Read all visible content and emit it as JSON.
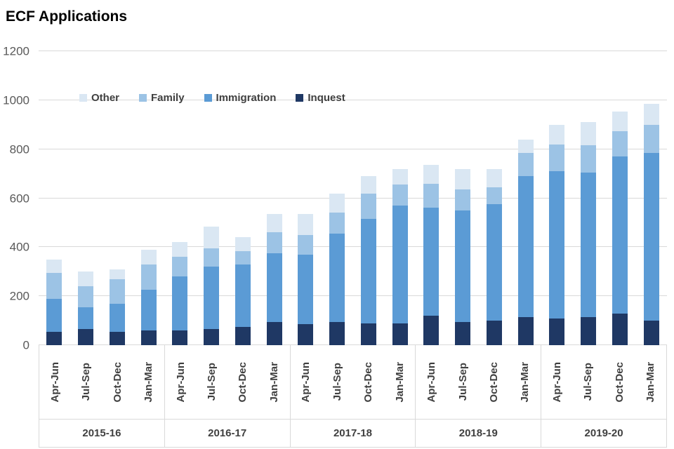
{
  "title": "ECF Applications",
  "chart_data": {
    "type": "bar",
    "variant": "stacked-column",
    "title": "ECF Applications",
    "ylim": [
      0,
      1200
    ],
    "yticks": [
      0,
      200,
      400,
      600,
      800,
      1000,
      1200
    ],
    "grid": "horizontal",
    "legend_position": "inside-top-left",
    "groups": [
      "2015-16",
      "2016-17",
      "2017-18",
      "2018-19",
      "2019-20"
    ],
    "quarters": [
      "Apr-Jun",
      "Jul-Sep",
      "Oct-Dec",
      "Jan-Mar"
    ],
    "legend": [
      {
        "name": "Other",
        "color": "#dae7f3"
      },
      {
        "name": "Family",
        "color": "#9cc3e5"
      },
      {
        "name": "Immigration",
        "color": "#5b9bd5"
      },
      {
        "name": "Inquest",
        "color": "#1f3864"
      }
    ],
    "stack_order": [
      "Inquest",
      "Immigration",
      "Family",
      "Other"
    ],
    "series": [
      {
        "name": "Inquest",
        "values": [
          55,
          65,
          55,
          60,
          60,
          65,
          75,
          95,
          85,
          95,
          90,
          90,
          120,
          95,
          100,
          115,
          110,
          115,
          130,
          100
        ]
      },
      {
        "name": "Immigration",
        "values": [
          135,
          90,
          115,
          165,
          220,
          255,
          255,
          280,
          285,
          360,
          425,
          480,
          440,
          455,
          475,
          575,
          600,
          590,
          640,
          685
        ]
      },
      {
        "name": "Family",
        "values": [
          105,
          85,
          100,
          105,
          80,
          75,
          55,
          85,
          80,
          85,
          105,
          85,
          100,
          85,
          70,
          95,
          110,
          110,
          105,
          115
        ]
      },
      {
        "name": "Other",
        "values": [
          55,
          60,
          40,
          60,
          60,
          90,
          55,
          75,
          85,
          80,
          70,
          65,
          75,
          85,
          75,
          55,
          80,
          95,
          80,
          85
        ]
      }
    ],
    "totals": [
      350,
      300,
      310,
      390,
      420,
      485,
      440,
      535,
      535,
      620,
      690,
      720,
      735,
      720,
      720,
      840,
      900,
      910,
      955,
      985
    ]
  }
}
